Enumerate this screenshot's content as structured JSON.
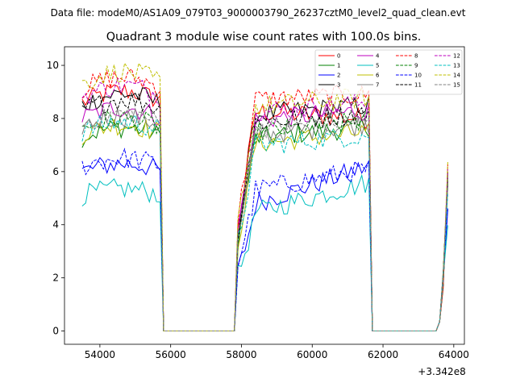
{
  "chart_data": {
    "type": "line",
    "suptitle": "Data file: modeM0/AS1A09_079T03_9000003790_26237cztM0_level2_quad_clean.evt",
    "title": "Quadrant 3 module wise count rates with 100.0s bins.",
    "xlabel": "",
    "ylabel": "",
    "x_offset_label": "+3.342e8",
    "xlim": [
      53000,
      64300
    ],
    "ylim": [
      -0.5,
      10.7
    ],
    "x_ticks": [
      54000,
      56000,
      58000,
      60000,
      62000,
      64000
    ],
    "x_tick_labels": [
      "54000",
      "56000",
      "58000",
      "60000",
      "62000",
      "64000"
    ],
    "y_ticks": [
      0,
      2,
      4,
      6,
      8,
      10
    ],
    "y_tick_labels": [
      "0",
      "2",
      "4",
      "6",
      "8",
      "10"
    ],
    "legend_position": "top-right",
    "segments": [
      {
        "start": 53500,
        "end": 55700,
        "tail": 55800
      },
      {
        "start": 57900,
        "end": 61600,
        "lead": 57800
      },
      {
        "start": 63600,
        "end": 63830
      }
    ],
    "gaps": [
      [
        55800,
        57800
      ],
      [
        61700,
        63500
      ]
    ],
    "series": [
      {
        "name": "0",
        "color": "#ff0000",
        "style": "solid",
        "levels": [
          8.6,
          8.3,
          8.0
        ]
      },
      {
        "name": "1",
        "color": "#008000",
        "style": "solid",
        "levels": [
          7.3,
          7.2,
          7.7
        ]
      },
      {
        "name": "2",
        "color": "#0000ff",
        "style": "solid",
        "levels": [
          6.0,
          4.6,
          6.2
        ]
      },
      {
        "name": "3",
        "color": "#000000",
        "style": "solid",
        "levels": [
          8.5,
          8.1,
          8.5
        ]
      },
      {
        "name": "4",
        "color": "#bf00bf",
        "style": "solid",
        "levels": [
          8.0,
          7.9,
          8.3
        ]
      },
      {
        "name": "5",
        "color": "#00bfbf",
        "style": "solid",
        "levels": [
          5.1,
          4.3,
          5.6
        ]
      },
      {
        "name": "6",
        "color": "#bfbf00",
        "style": "solid",
        "levels": [
          7.4,
          7.0,
          7.5
        ]
      },
      {
        "name": "7",
        "color": "#808080",
        "style": "solid",
        "levels": [
          7.7,
          7.3,
          7.8
        ]
      },
      {
        "name": "8",
        "color": "#ff0000",
        "style": "dashed",
        "levels": [
          9.1,
          8.7,
          8.9
        ]
      },
      {
        "name": "9",
        "color": "#008000",
        "style": "dashed",
        "levels": [
          7.6,
          7.4,
          7.9
        ]
      },
      {
        "name": "10",
        "color": "#0000ff",
        "style": "dashed",
        "levels": [
          6.2,
          5.2,
          6.1
        ]
      },
      {
        "name": "11",
        "color": "#000000",
        "style": "dashed",
        "levels": [
          8.3,
          7.8,
          8.2
        ]
      },
      {
        "name": "12",
        "color": "#bf00bf",
        "style": "dashed",
        "levels": [
          8.8,
          8.2,
          8.6
        ]
      },
      {
        "name": "13",
        "color": "#00bfbf",
        "style": "dashed",
        "levels": [
          7.5,
          6.9,
          7.4
        ]
      },
      {
        "name": "14",
        "color": "#bfbf00",
        "style": "dashed",
        "levels": [
          9.3,
          8.4,
          8.8
        ]
      },
      {
        "name": "15",
        "color": "#808080",
        "style": "dashed",
        "levels": [
          7.8,
          7.6,
          8.0
        ]
      }
    ]
  }
}
